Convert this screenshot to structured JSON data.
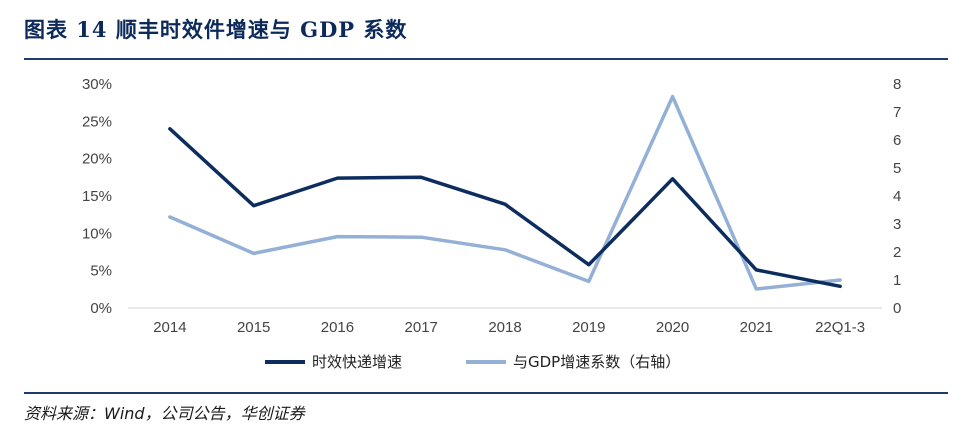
{
  "figure": {
    "title": "图表 14   顺丰时效件增速与 GDP 系数",
    "source": "资料来源：Wind，公司公告，华创证券"
  },
  "chart_data": {
    "type": "line",
    "categories": [
      "2014",
      "2015",
      "2016",
      "2017",
      "2018",
      "2019",
      "2020",
      "2021",
      "22Q1-3"
    ],
    "y_left": {
      "ticks": [
        "0%",
        "5%",
        "10%",
        "15%",
        "20%",
        "25%",
        "30%"
      ],
      "range": [
        0,
        30
      ],
      "unit": "%"
    },
    "y_right": {
      "ticks": [
        "0",
        "1",
        "2",
        "3",
        "4",
        "5",
        "6",
        "7",
        "8"
      ],
      "range": [
        0,
        8
      ]
    },
    "series": [
      {
        "name": "时效快递增速",
        "axis": "left",
        "color": "#0d2d5e",
        "values": [
          24,
          13.7,
          17.4,
          17.5,
          13.9,
          5.8,
          17.3,
          5.1,
          2.9
        ]
      },
      {
        "name": "与GDP增速系数（右轴）",
        "axis": "right",
        "color": "#94b0d6",
        "values": [
          3.25,
          1.95,
          2.55,
          2.53,
          2.08,
          0.95,
          7.55,
          0.68,
          1.0
        ]
      }
    ],
    "grid": false,
    "legend": "bottom-center"
  }
}
